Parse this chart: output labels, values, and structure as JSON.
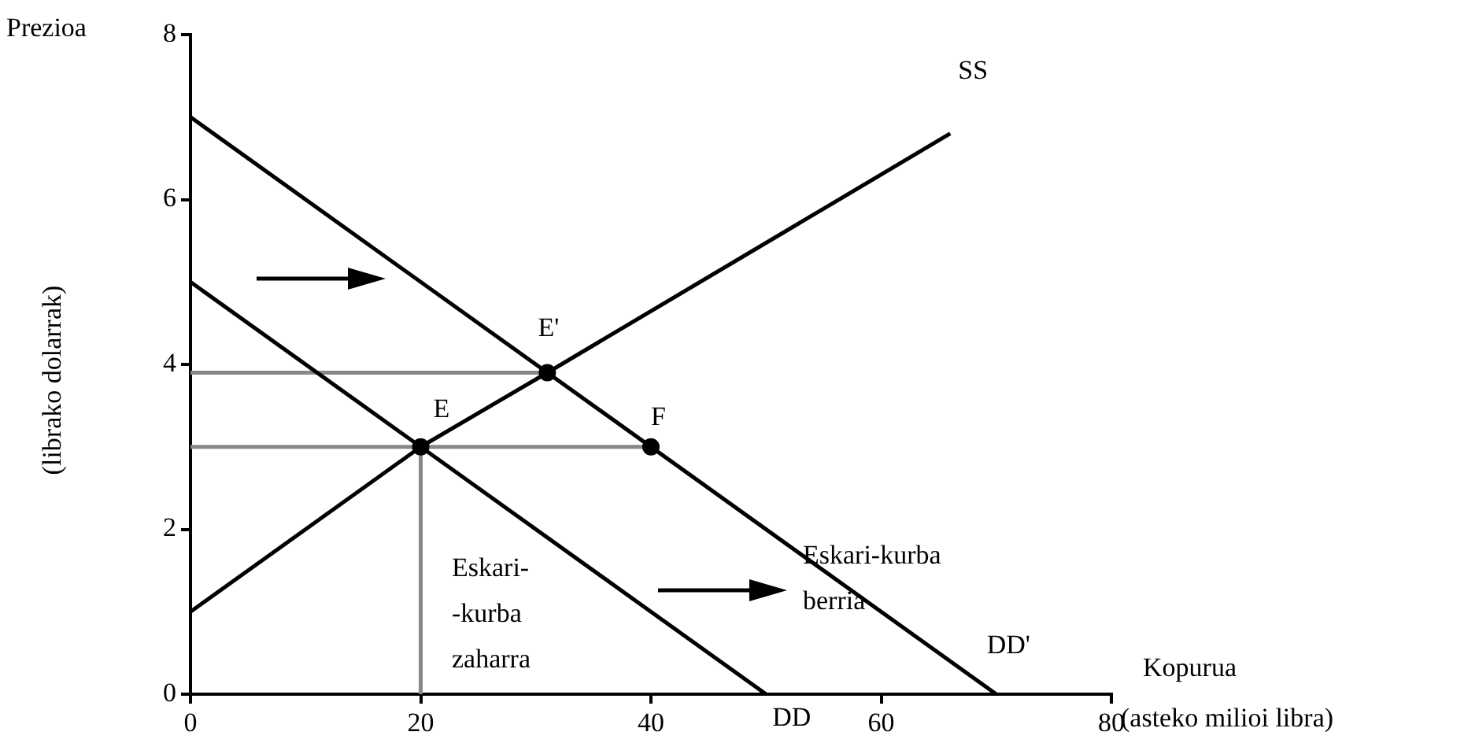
{
  "chart_data": {
    "type": "line",
    "xlabel": "Kopurua (asteko milioi libra)",
    "ylabel": "(librako dolarrak)",
    "xlim": [
      0,
      80
    ],
    "xticks": [
      0,
      20,
      40,
      60,
      80
    ],
    "ylim": [
      0,
      8
    ],
    "yticks": [
      0,
      2,
      4,
      6,
      8
    ],
    "grid": false,
    "legend": false,
    "series": [
      {
        "color": "#888888",
        "marker": "none",
        "x": [
          0,
          31
        ],
        "values": [
          3.9,
          3.9
        ]
      },
      {
        "color": "#888888",
        "marker": "none",
        "x": [
          0,
          40
        ],
        "values": [
          3,
          3
        ]
      },
      {
        "color": "#888888",
        "marker": "none",
        "x": [
          20,
          20
        ],
        "values": [
          0,
          3
        ]
      },
      {
        "color": "#000000",
        "marker": "none",
        "x": [
          0,
          50
        ],
        "values": [
          5,
          0
        ]
      },
      {
        "color": "#000000",
        "marker": "none",
        "x": [
          0,
          70
        ],
        "values": [
          7,
          0
        ]
      },
      {
        "color": "#000000",
        "marker": "none",
        "x": [
          0,
          20,
          31,
          66
        ],
        "values": [
          1,
          3,
          3.9,
          6.8
        ]
      },
      {
        "type": "scatter",
        "color": "#000000",
        "marker": "circle",
        "x": [
          20,
          31,
          40
        ],
        "values": [
          3,
          3.9,
          3
        ]
      }
    ],
    "annotations": [
      "Prezioa",
      {
        "text": "SS",
        "x": 66,
        "y": 6.8
      },
      {
        "text": "E'",
        "x": 31,
        "y": 3.9
      },
      {
        "text": "E",
        "x": 20,
        "y": 3
      },
      {
        "text": "F",
        "x": 40,
        "y": 3
      },
      "Eskari-kurba\nberria",
      "Eskari-\n-kurba\nzaharra",
      {
        "text": "DD",
        "x": 50,
        "y": 0
      },
      {
        "text": "DD'",
        "x": 70,
        "y": 0
      }
    ]
  }
}
